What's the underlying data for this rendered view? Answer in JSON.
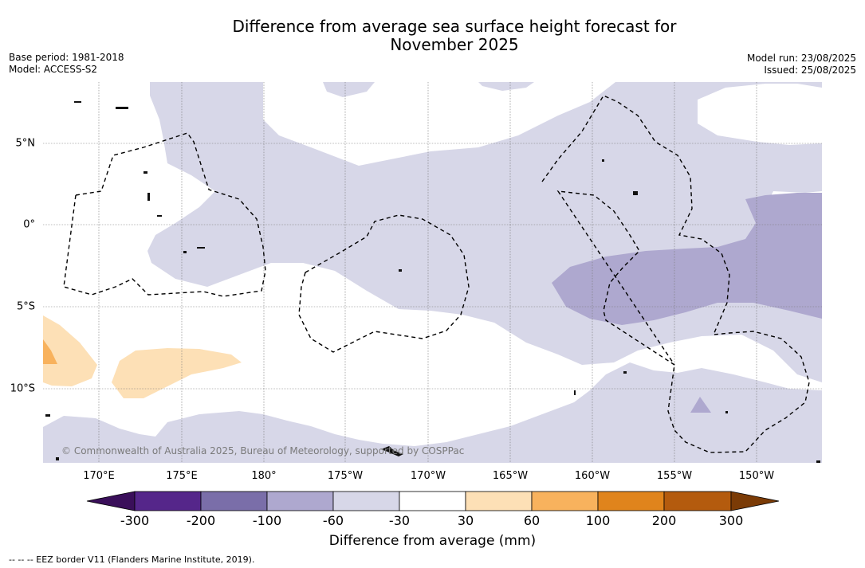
{
  "title_line1": "Difference from average sea surface height forecast for",
  "title_line2": "November 2025",
  "meta_left": [
    "Base period: 1981-2018",
    "Model: ACCESS-S2"
  ],
  "meta_right": [
    "Model run: 23/08/2025",
    "Issued: 25/08/2025"
  ],
  "longitude_labels": [
    "170°E",
    "175°E",
    "180°",
    "175°W",
    "170°W",
    "165°W",
    "160°W",
    "155°W",
    "150°W"
  ],
  "latitude_labels": [
    "5°N",
    "0°",
    "5°S",
    "10°S"
  ],
  "copyright": "© Commonwealth of Australia 2025, Bureau of Meteorology, supported by COSPPac",
  "colorbar": {
    "title": "Difference from average (mm)",
    "tick_labels": [
      "-300",
      "-200",
      "-100",
      "-60",
      "-30",
      "30",
      "60",
      "100",
      "200",
      "300"
    ],
    "colors": [
      "#3a0f5a",
      "#55268a",
      "#7a6ea9",
      "#aea8cf",
      "#d7d7e8",
      "#ffffff",
      "#fde0b6",
      "#f8b25d",
      "#e0841c",
      "#b45b0e",
      "#7b3b06"
    ]
  },
  "footnote": "-- -- -- EEZ border V11 (Flanders Marine Institute, 2019)."
}
